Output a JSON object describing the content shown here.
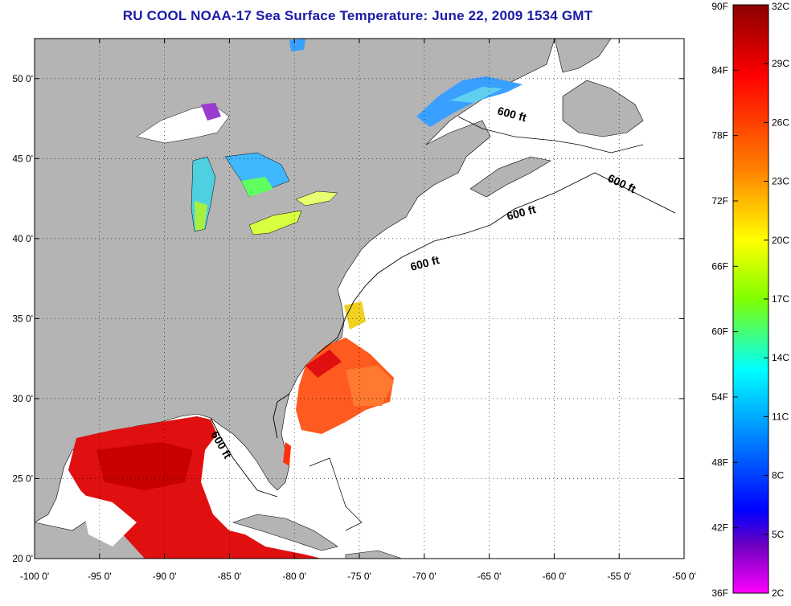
{
  "title": "RU COOL  NOAA-17  Sea Surface Temperature:  June 22, 2009 1534 GMT",
  "map": {
    "lon_range": [
      -100,
      -50
    ],
    "lat_range": [
      20,
      52.5
    ],
    "x_ticks": [
      "-100 0'",
      "-95 0'",
      "-90 0'",
      "-85 0'",
      "-80 0'",
      "-75 0'",
      "-70 0'",
      "-65 0'",
      "-60 0'",
      "-55 0'",
      "-50 0'"
    ],
    "y_ticks": [
      "50 0'",
      "45 0'",
      "40 0'",
      "35 0'",
      "30 0'",
      "25 0'",
      "20 0'"
    ],
    "grid": "dotted",
    "land_color": "#b4b4b4",
    "no_data_color": "#ffffff",
    "contour_label": "600 ft"
  },
  "colorbar": {
    "fahrenheit_labels": [
      "90F",
      "84F",
      "78F",
      "72F",
      "66F",
      "60F",
      "54F",
      "48F",
      "42F",
      "36F"
    ],
    "celsius_labels": [
      "32C",
      "29C",
      "26C",
      "23C",
      "20C",
      "17C",
      "14C",
      "11C",
      "8C",
      "5C",
      "2C"
    ],
    "colors": [
      "#8b0000",
      "#ff0000",
      "#ff7f00",
      "#ffff00",
      "#7fff00",
      "#00ffff",
      "#0080ff",
      "#0000ff",
      "#8000c0",
      "#ff00ff"
    ]
  }
}
